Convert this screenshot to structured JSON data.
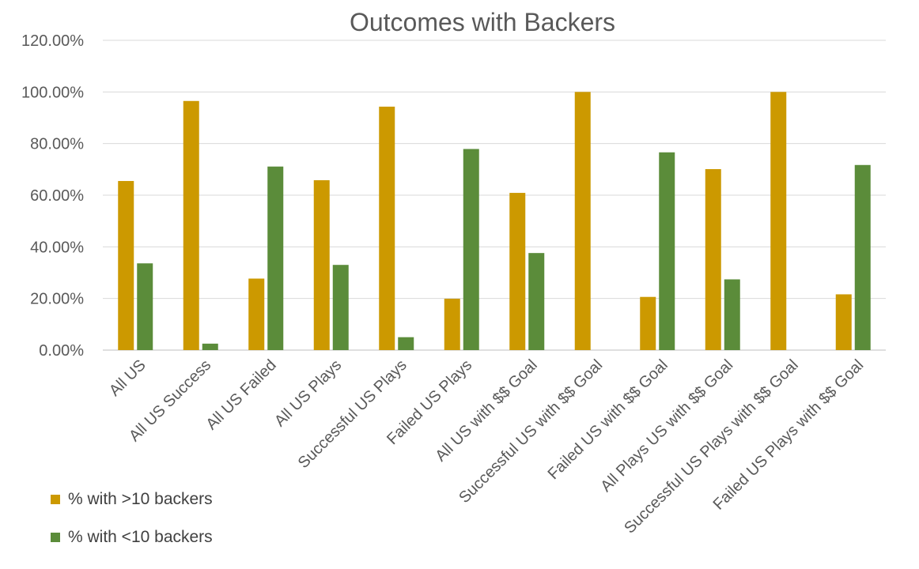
{
  "chart_data": {
    "type": "bar",
    "title": "Outcomes with Backers",
    "xlabel": "",
    "ylabel": "",
    "ylim": [
      0,
      1.2
    ],
    "y_ticks": [
      "0.00%",
      "20.00%",
      "40.00%",
      "60.00%",
      "80.00%",
      "100.00%",
      "120.00%"
    ],
    "y_tick_values": [
      0,
      0.2,
      0.4,
      0.6,
      0.8,
      1.0,
      1.2
    ],
    "grid": true,
    "legend_position": "bottom-left",
    "categories": [
      "All US",
      "All US Success",
      "All US Failed",
      "All US Plays",
      "Successful US Plays",
      "Failed US Plays",
      "All US with $$ Goal",
      "Successful US with $$ Goal",
      "Failed US with $$ Goal",
      "All Plays US with $$ Goal",
      "Successful US Plays with $$ Goal",
      "Failed US Plays with $$ Goal"
    ],
    "series": [
      {
        "name": "% with >10 backers",
        "color": "#CC9900",
        "values": [
          0.655,
          0.965,
          0.277,
          0.658,
          0.943,
          0.199,
          0.609,
          1.0,
          0.206,
          0.701,
          1.0,
          0.216
        ]
      },
      {
        "name": "% with <10 backers",
        "color": "#5B8C3A",
        "values": [
          0.336,
          0.025,
          0.711,
          0.33,
          0.05,
          0.779,
          0.376,
          0.0,
          0.766,
          0.274,
          0.0,
          0.717
        ]
      }
    ]
  }
}
